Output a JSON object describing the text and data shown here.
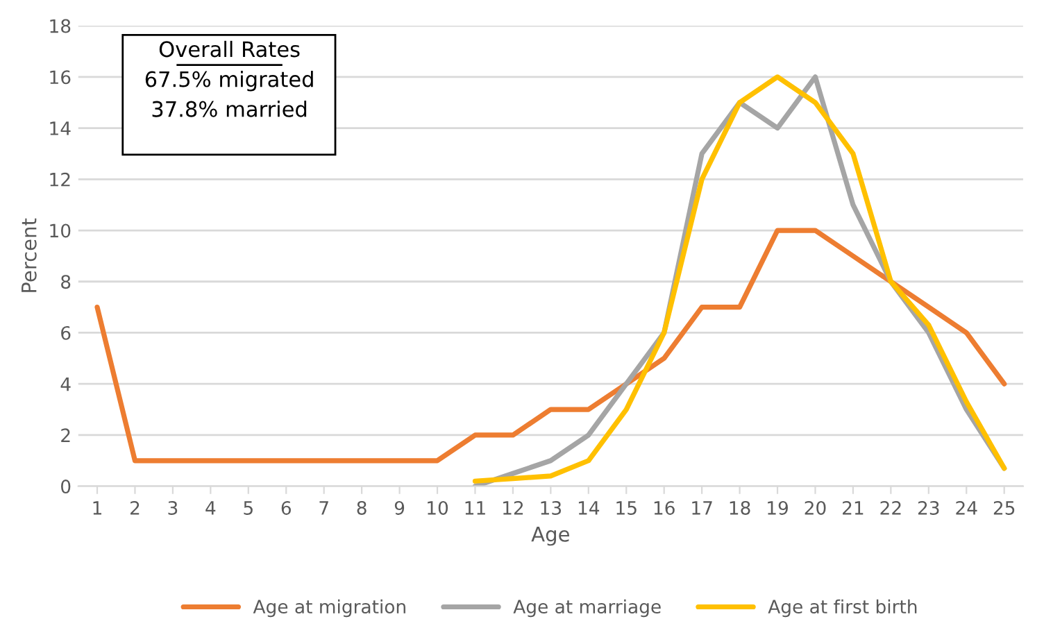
{
  "chart_data": {
    "type": "line",
    "xlabel": "Age",
    "ylabel": "Percent",
    "categories": [
      "1",
      "2",
      "3",
      "4",
      "5",
      "6",
      "7",
      "8",
      "9",
      "10",
      "11",
      "12",
      "13",
      "14",
      "15",
      "16",
      "17",
      "18",
      "19",
      "20",
      "21",
      "22",
      "23",
      "24",
      "25"
    ],
    "series": [
      {
        "name": "Age at migration",
        "color": "#ed7d31",
        "values": [
          7,
          1,
          1,
          1,
          1,
          1,
          1,
          1,
          1,
          1,
          2,
          2,
          3,
          3,
          4,
          5,
          7,
          7,
          10,
          10,
          9,
          8,
          7,
          6,
          4
        ]
      },
      {
        "name": "Age at marriage",
        "color": "#a5a5a5",
        "values": [
          null,
          null,
          null,
          null,
          null,
          null,
          null,
          null,
          null,
          null,
          0,
          0.5,
          1,
          2,
          4,
          6,
          13,
          15,
          14,
          16,
          11,
          8,
          6,
          3,
          0.7
        ]
      },
      {
        "name": "Age at first birth",
        "color": "#ffc000",
        "values": [
          null,
          null,
          null,
          null,
          null,
          null,
          null,
          null,
          null,
          null,
          0.2,
          0.3,
          0.4,
          1,
          3,
          6,
          12,
          15,
          16,
          15,
          13,
          8,
          6.3,
          3.3,
          0.7
        ]
      }
    ],
    "ylim": [
      0,
      18
    ],
    "yticks": [
      0,
      2,
      4,
      6,
      8,
      10,
      12,
      14,
      16,
      18
    ],
    "grid": "y",
    "legend": "bottom",
    "marker": "none",
    "line_style": "solid",
    "annotations": [
      "Overall Rates",
      "67.5% migrated",
      "37.8% married"
    ]
  }
}
